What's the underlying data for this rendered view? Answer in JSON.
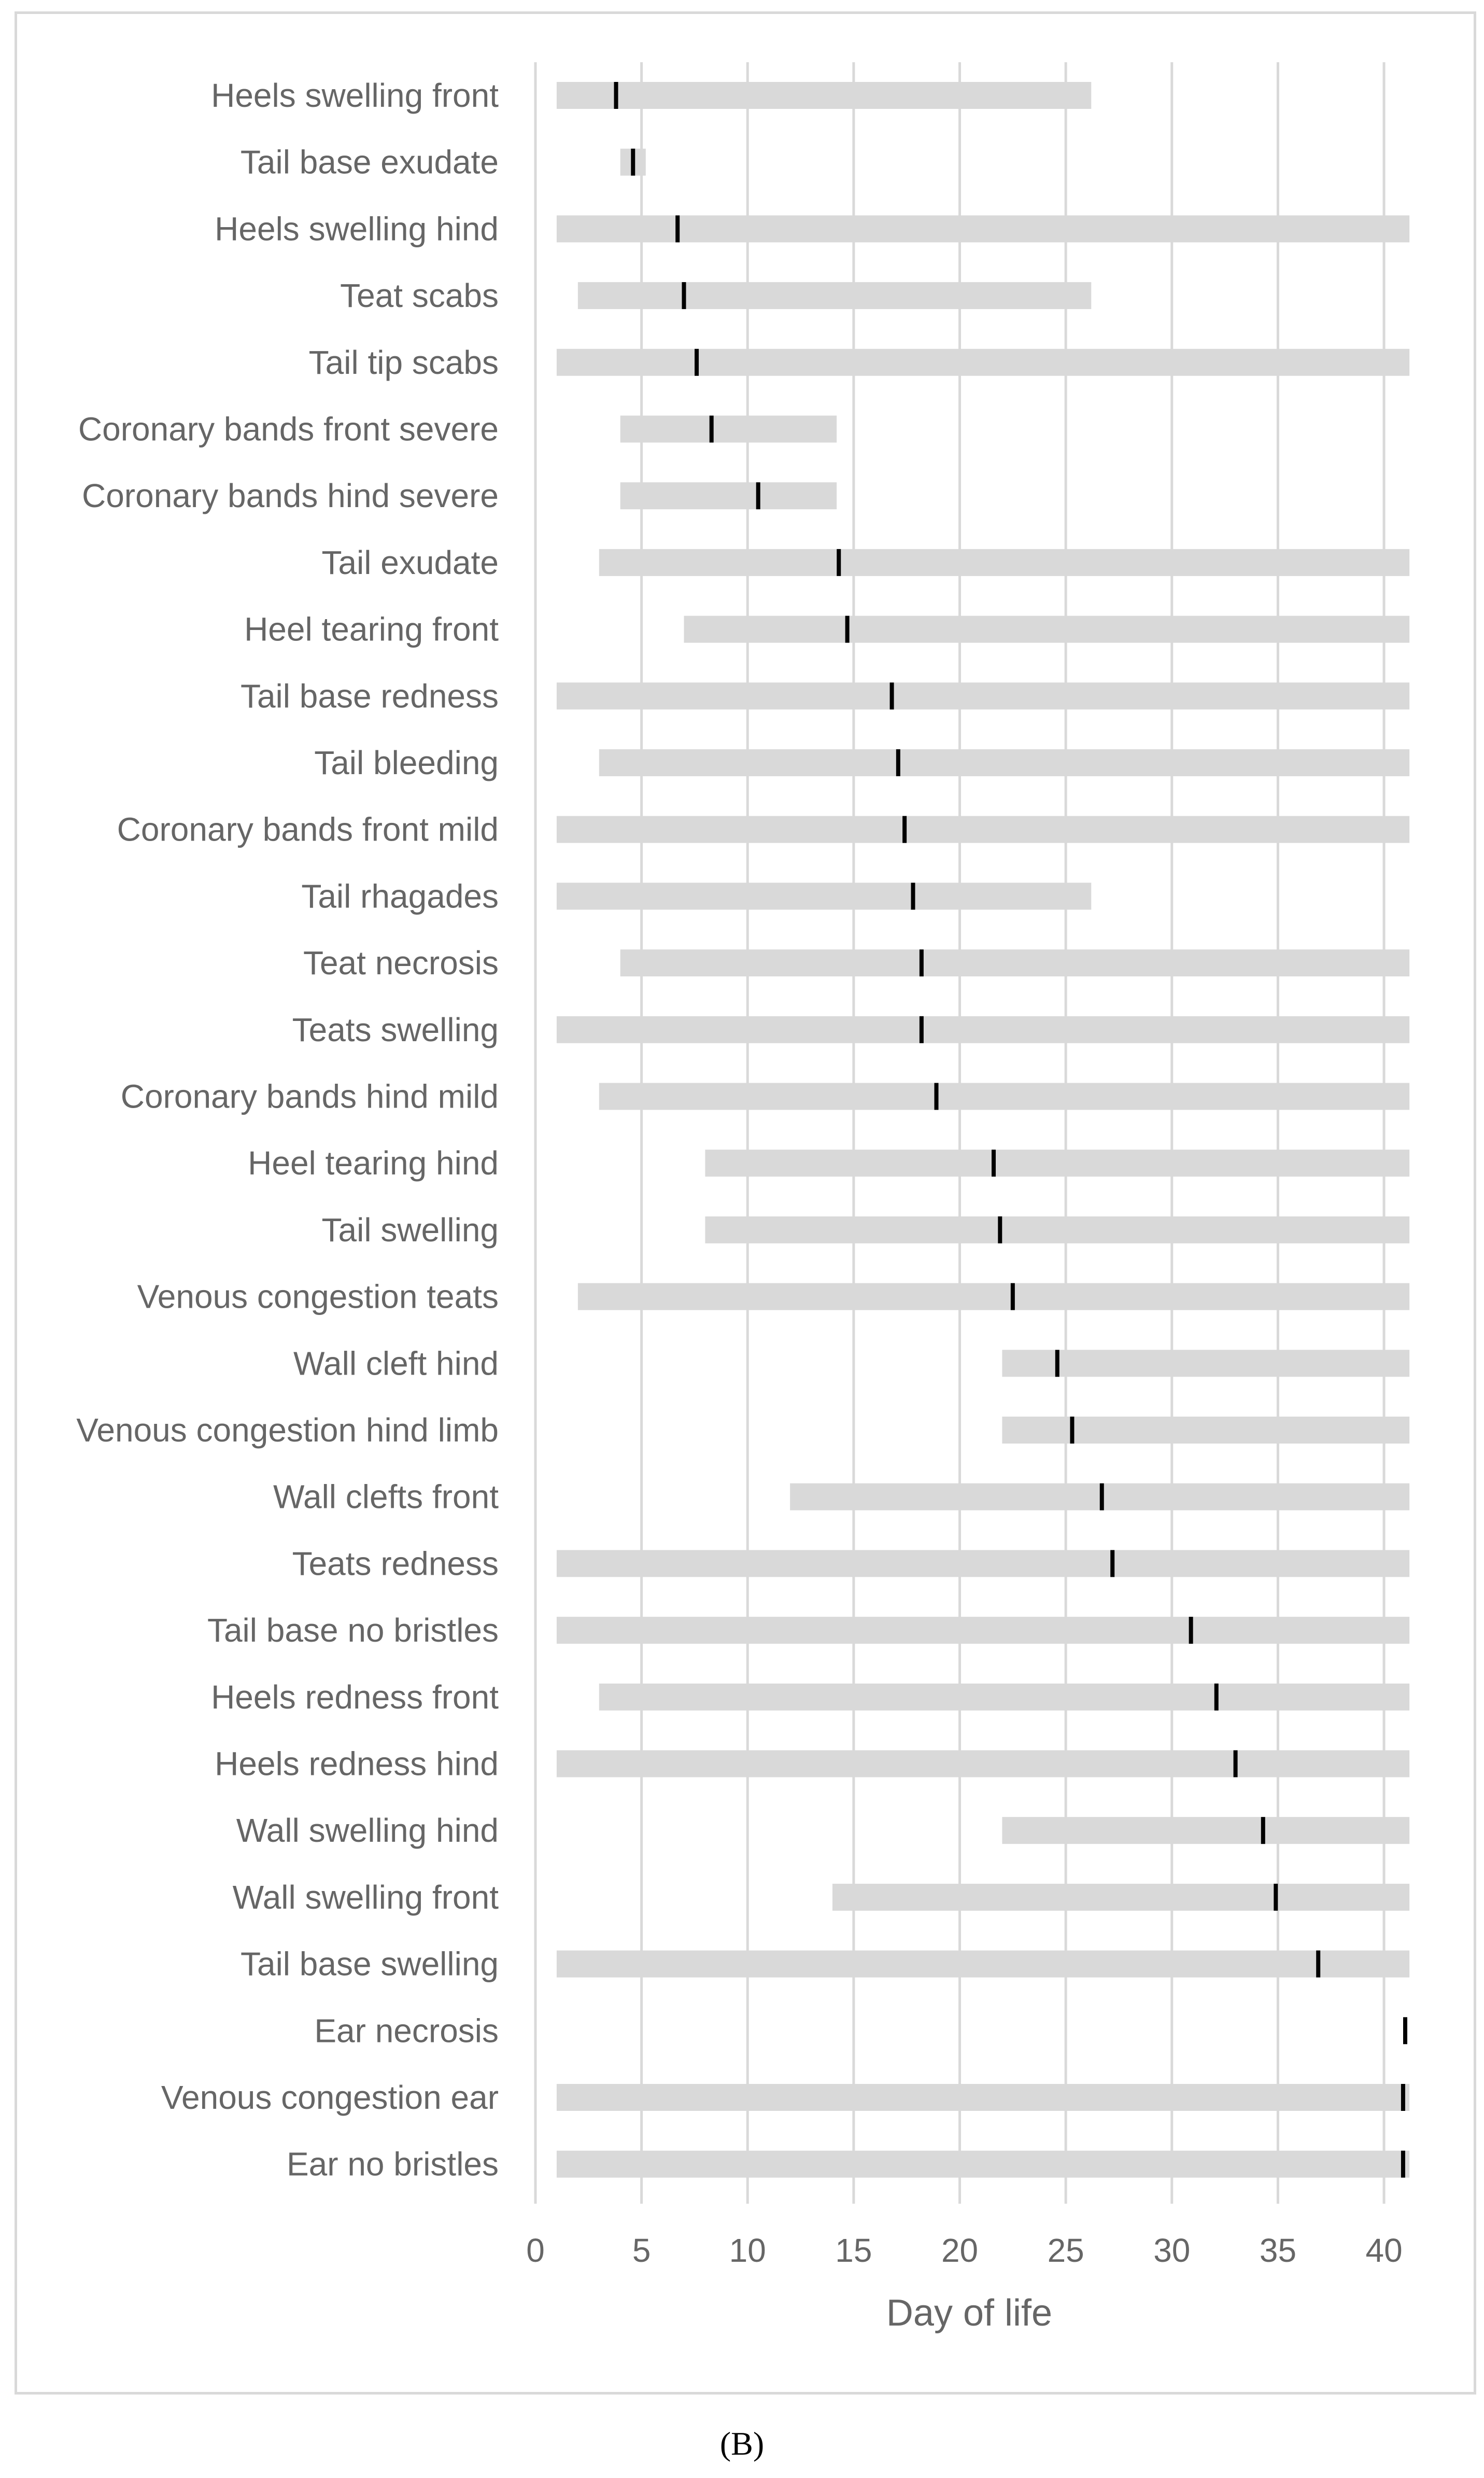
{
  "chart_data": {
    "type": "bar",
    "orientation": "horizontal-range",
    "xlabel": "Day of life",
    "xlim": [
      0,
      41
    ],
    "xticks": [
      0,
      5,
      10,
      15,
      20,
      25,
      30,
      35,
      40
    ],
    "grid": true,
    "colors": {
      "range_bar": "#d9d9d9",
      "median_marker": "#000000",
      "gridline": "#d9d9d9",
      "text": "#666666"
    },
    "categories": [
      "Heels swelling front",
      "Tail base exudate",
      "Heels swelling hind",
      "Teat scabs",
      "Tail tip scabs",
      "Coronary bands front severe",
      "Coronary bands hind severe",
      "Tail exudate",
      "Heel tearing front",
      "Tail base redness",
      "Tail bleeding",
      "Coronary bands front mild",
      "Tail rhagades",
      "Teat necrosis",
      "Teats swelling",
      "Coronary bands hind mild",
      "Heel tearing hind",
      "Tail swelling",
      "Venous congestion teats",
      "Wall cleft hind",
      "Venous congestion hind limb",
      "Wall clefts front",
      "Teats redness",
      "Tail base no bristles",
      "Heels redness front",
      "Heels redness hind",
      "Wall swelling hind",
      "Wall swelling front",
      "Tail base swelling",
      "Ear necrosis",
      "Venous congestion ear",
      "Ear no bristles"
    ],
    "range_start": [
      1,
      4,
      1,
      2,
      1,
      4,
      4,
      3,
      7,
      1,
      3,
      1,
      1,
      4,
      1,
      3,
      8,
      8,
      2,
      22,
      22,
      12,
      1,
      1,
      3,
      1,
      22,
      14,
      1,
      41,
      1,
      1
    ],
    "range_end": [
      26.2,
      5.2,
      41.2,
      26.2,
      41.2,
      14.2,
      14.2,
      41.2,
      41.2,
      41.2,
      41.2,
      41.2,
      26.2,
      41.2,
      41.2,
      41.2,
      41.2,
      41.2,
      41.2,
      41.2,
      41.2,
      41.2,
      41.2,
      41.2,
      41.2,
      41.2,
      41.2,
      41.2,
      41.2,
      41,
      41.2,
      41.2
    ],
    "marker": [
      3.8,
      4.6,
      6.7,
      7.0,
      7.6,
      8.3,
      10.5,
      14.3,
      14.7,
      16.8,
      17.1,
      17.4,
      17.8,
      18.2,
      18.2,
      18.9,
      21.6,
      21.9,
      22.5,
      24.6,
      25.3,
      26.7,
      27.2,
      30.9,
      32.1,
      33.0,
      34.3,
      34.9,
      36.9,
      41.0,
      40.9,
      40.9
    ]
  },
  "caption": {
    "label": "(B)"
  }
}
